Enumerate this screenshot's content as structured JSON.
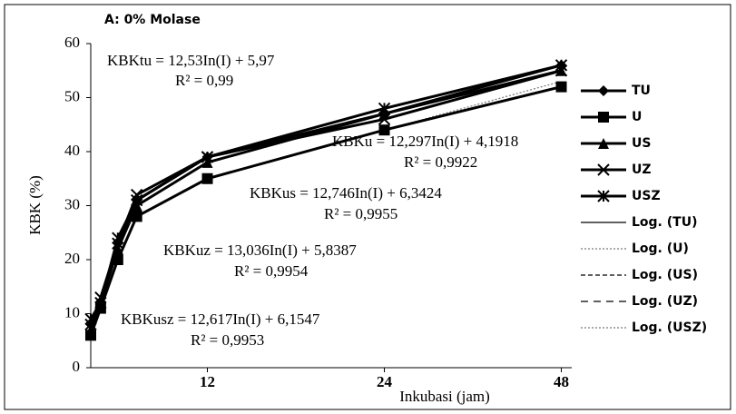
{
  "chart_data": {
    "type": "line",
    "title": "A: 0% Molase",
    "xlabel": "Inkubasi (jam)",
    "ylabel": "KBK (%)",
    "xscale": "log",
    "xlim": [
      7.6,
      50
    ],
    "xticks": [
      12,
      24,
      48
    ],
    "ylim": [
      0,
      60
    ],
    "yticks": [
      0,
      10,
      20,
      30,
      40,
      50,
      60
    ],
    "x": [
      7.6,
      7.9,
      8.45,
      9.1,
      12,
      24,
      48
    ],
    "series": [
      {
        "name": "TU",
        "color": "#000000",
        "marker": "diamond",
        "values": [
          8,
          12,
          23,
          31,
          39,
          47,
          56
        ]
      },
      {
        "name": "U",
        "color": "#000000",
        "marker": "square",
        "values": [
          6,
          11,
          20,
          28,
          35,
          44,
          52
        ]
      },
      {
        "name": "US",
        "color": "#000000",
        "marker": "triangle",
        "values": [
          7,
          12,
          22,
          30,
          38,
          47,
          55
        ]
      },
      {
        "name": "UZ",
        "color": "#000000",
        "marker": "x",
        "values": [
          8,
          13,
          23,
          32,
          39,
          46,
          55
        ]
      },
      {
        "name": "USZ",
        "color": "#000000",
        "marker": "asterisk",
        "values": [
          9,
          12,
          24,
          31,
          39,
          48,
          56
        ]
      }
    ],
    "trendlines": [
      {
        "name": "Log. (TU)",
        "color": "#000000",
        "dash": "none",
        "values": [
          9,
          12,
          22,
          30,
          38,
          47,
          56
        ]
      },
      {
        "name": "Log. (U)",
        "color": "#777777",
        "dash": "2,2",
        "values": [
          7,
          11,
          20,
          28,
          35,
          44,
          53
        ]
      },
      {
        "name": "Log. (US)",
        "color": "#000000",
        "dash": "5,3",
        "values": [
          8,
          12,
          22,
          30,
          38,
          47,
          55
        ]
      },
      {
        "name": "Log. (UZ)",
        "color": "#000000",
        "dash": "8,6",
        "values": [
          9,
          13,
          23,
          31,
          39,
          47,
          55
        ]
      },
      {
        "name": "Log. (USZ)",
        "color": "#777777",
        "dash": "2,2",
        "values": [
          9,
          12,
          23,
          31,
          39,
          48,
          56
        ]
      }
    ],
    "annotations": [
      "KBKtu = 12,53In(I) + 5,97",
      "R² = 0,99",
      "KBKu = 12,297In(I) + 4,1918",
      "R² = 0,9922",
      "KBKus = 12,746In(I) + 6,3424",
      "R² = 0,9955",
      "KBKuz = 13,036In(I) + 5,8387",
      "R² = 0,9954",
      "KBKusz = 12,617In(I) + 6,1547",
      "R² = 0,9953"
    ]
  }
}
